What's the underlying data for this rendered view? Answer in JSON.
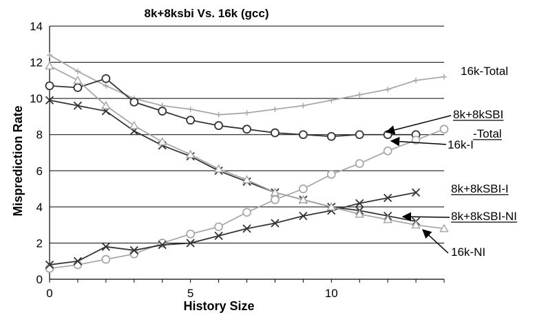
{
  "chart_data": {
    "type": "line",
    "title": "8k+8ksbi Vs. 16k (gcc)",
    "xlabel": "History Size",
    "ylabel": "Misprediction Rate",
    "xlim": [
      0,
      14
    ],
    "ylim": [
      0,
      14
    ],
    "xticks": [
      0,
      5,
      10
    ],
    "yticks": [
      0,
      2,
      4,
      6,
      8,
      10,
      12,
      14
    ],
    "grid": "horizontal",
    "x": [
      0,
      1,
      2,
      3,
      4,
      5,
      6,
      7,
      8,
      9,
      10,
      11,
      12,
      13,
      14
    ],
    "series": [
      {
        "key": "total16k",
        "label_lines": [
          "16k-Total"
        ],
        "color": "#a8a8a8",
        "marker": "plus",
        "values": [
          12.4,
          11.5,
          10.7,
          10.0,
          9.6,
          9.4,
          9.1,
          9.2,
          9.4,
          9.6,
          9.9,
          10.2,
          10.5,
          11.0,
          11.2
        ]
      },
      {
        "key": "sbiTotal",
        "label_lines": [
          "8k+8kSBI",
          "-Total"
        ],
        "color": "#333333",
        "marker": "circle",
        "values": [
          10.7,
          10.6,
          11.1,
          9.8,
          9.3,
          8.8,
          8.5,
          8.3,
          8.1,
          8.0,
          7.9,
          8.0,
          8.0,
          8.0,
          null
        ]
      },
      {
        "key": "i16k",
        "label_lines": [
          "16k-I"
        ],
        "color": "#a8a8a8",
        "marker": "circle",
        "values": [
          0.6,
          0.8,
          1.1,
          1.4,
          2.0,
          2.5,
          2.9,
          3.7,
          4.4,
          5.0,
          5.8,
          6.4,
          7.1,
          7.7,
          8.3
        ]
      },
      {
        "key": "sbiI",
        "label_lines": [
          "8k+8kSBI-I"
        ],
        "color": "#333333",
        "marker": "x",
        "values": [
          0.8,
          1.0,
          1.8,
          1.6,
          1.9,
          2.0,
          2.4,
          2.8,
          3.1,
          3.5,
          3.8,
          4.2,
          4.5,
          4.8,
          null
        ]
      },
      {
        "key": "sbiNI",
        "label_lines": [
          "8k+8kSBI-NI"
        ],
        "color": "#333333",
        "marker": "x",
        "values": [
          9.9,
          9.6,
          9.3,
          8.2,
          7.4,
          6.8,
          6.0,
          5.4,
          4.8,
          4.4,
          4.0,
          3.8,
          3.5,
          3.2,
          null
        ]
      },
      {
        "key": "ni16k",
        "label_lines": [
          "16k-NI"
        ],
        "color": "#a8a8a8",
        "marker": "triangle",
        "values": [
          11.8,
          11.0,
          9.6,
          8.5,
          7.6,
          6.9,
          6.1,
          5.5,
          4.8,
          4.4,
          4.0,
          3.6,
          3.3,
          3.0,
          2.8
        ]
      }
    ]
  }
}
